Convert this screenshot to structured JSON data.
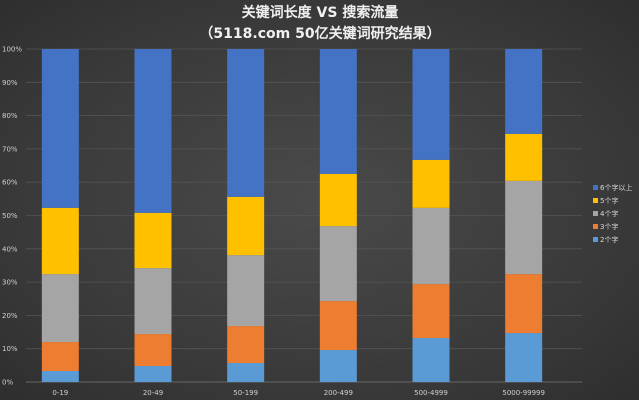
{
  "chart_data": {
    "type": "bar",
    "stacked": true,
    "percent": true,
    "title": "关键词长度 VS 搜索流量",
    "subtitle": "（5118.com 50亿关键词研究结果）",
    "xlabel": "",
    "ylabel": "",
    "ylim": [
      0,
      100
    ],
    "yticks": [
      "0%",
      "10%",
      "20%",
      "30%",
      "40%",
      "50%",
      "60%",
      "70%",
      "80%",
      "90%",
      "100%"
    ],
    "grid": true,
    "legend_position": "right",
    "categories": [
      "0-19",
      "20-49",
      "50-199",
      "200-499",
      "500-4999",
      "5000-99999"
    ],
    "series": [
      {
        "name": "2个字",
        "color": "#5b9bd5",
        "values": [
          3.3,
          4.8,
          5.7,
          9.6,
          13.2,
          14.7
        ]
      },
      {
        "name": "3个字",
        "color": "#ed7d31",
        "values": [
          8.7,
          9.6,
          11.1,
          14.7,
          16.2,
          17.7
        ]
      },
      {
        "name": "4个字",
        "color": "#a5a5a5",
        "values": [
          20.4,
          19.8,
          21.3,
          22.5,
          22.9,
          28.0
        ]
      },
      {
        "name": "5个字",
        "color": "#ffc000",
        "values": [
          19.9,
          16.6,
          17.5,
          15.7,
          14.4,
          14.1
        ]
      },
      {
        "name": "6个字以上",
        "color": "#4472c4",
        "values": [
          47.7,
          49.2,
          44.4,
          37.5,
          33.3,
          25.5
        ]
      }
    ]
  }
}
